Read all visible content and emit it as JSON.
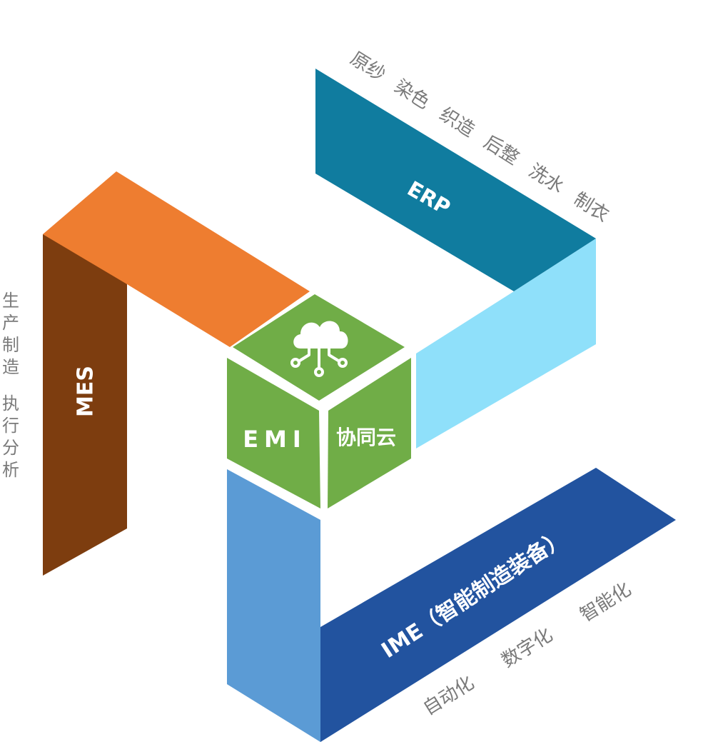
{
  "bands": {
    "erp": {
      "label": "ERP",
      "color_top": "#107C9F",
      "color_side": "#8FE0FA"
    },
    "mes": {
      "label": "MES",
      "color_top": "#EE7D30",
      "color_side": "#7D3D0F"
    },
    "ime": {
      "label": "IME（智能制造装备）",
      "color_top": "#22539F",
      "color_side": "#5B9BD5"
    }
  },
  "hub": {
    "color": "#70AD47",
    "left_label": "EMI",
    "right_label": "协同云",
    "icon": "cloud-network-icon"
  },
  "captions": {
    "erp_steps": [
      "原纱",
      "染色",
      "织造",
      "后整",
      "洗水",
      "制衣"
    ],
    "mes_lines": [
      [
        "生",
        "产",
        "制",
        "造"
      ],
      [
        "执",
        "行",
        "分",
        "析"
      ]
    ],
    "ime_steps": [
      "自动化",
      "数字化",
      "智能化"
    ]
  }
}
